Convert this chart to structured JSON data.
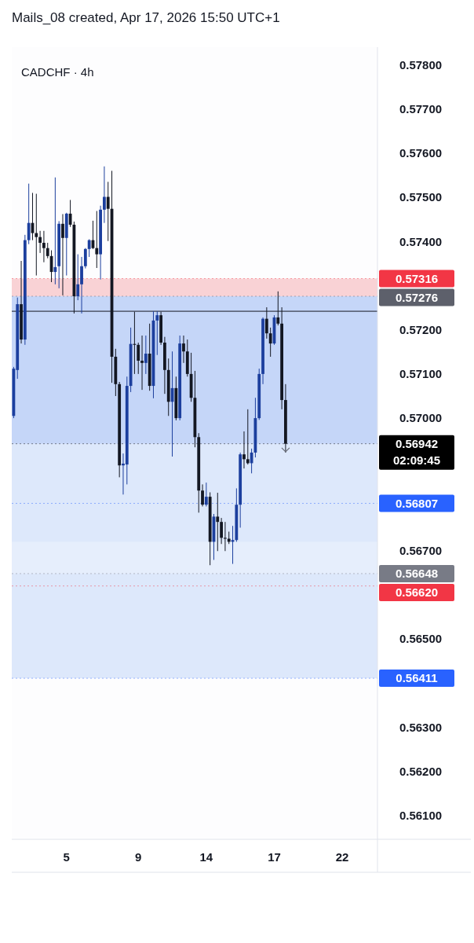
{
  "chart_data": {
    "type": "candlestick",
    "title": "CADCHF · 4h",
    "annotations": [
      "Mails_08 created, Apr 17, 2026 15:50 UTC+1"
    ],
    "categories": [
      null,
      null,
      null,
      null,
      null,
      null,
      null,
      null,
      null,
      null,
      null,
      null,
      null,
      null,
      "5",
      null,
      null,
      null,
      null,
      null,
      null,
      null,
      null,
      null,
      null,
      null,
      null,
      null,
      null,
      null,
      null,
      null,
      null,
      "9",
      null,
      null,
      null,
      null,
      null,
      null,
      null,
      null,
      null,
      null,
      null,
      null,
      null,
      null,
      null,
      null,
      null,
      "14",
      null,
      null,
      null,
      null,
      null,
      null,
      null,
      null,
      null,
      null,
      null,
      null,
      null,
      null,
      null,
      null,
      null,
      "17",
      null,
      null,
      null,
      null,
      null,
      null,
      null,
      null,
      null,
      null,
      null,
      null,
      null,
      null,
      null,
      null,
      null,
      "22",
      null,
      null,
      null,
      null,
      null,
      null,
      null,
      null
    ],
    "ohlc": [
      [
        0.57005,
        0.57116,
        0.57,
        0.57112
      ],
      [
        0.57109,
        0.57273,
        0.57089,
        0.57258
      ],
      [
        0.57258,
        0.57356,
        0.57169,
        0.57178
      ],
      [
        0.57178,
        0.57415,
        0.57166,
        0.57403
      ],
      [
        0.57403,
        0.57531,
        0.57394,
        0.57442
      ],
      [
        0.57442,
        0.5751,
        0.57403,
        0.57419
      ],
      [
        0.57419,
        0.57508,
        0.57323,
        0.5741
      ],
      [
        0.5741,
        0.57424,
        0.57374,
        0.57397
      ],
      [
        0.57397,
        0.57424,
        0.57353,
        0.57385
      ],
      [
        0.57385,
        0.57397,
        0.57362,
        0.57367
      ],
      [
        0.57367,
        0.5738,
        0.57308,
        0.57331
      ],
      [
        0.57331,
        0.57545,
        0.57303,
        0.57342
      ],
      [
        0.57344,
        0.57446,
        0.57294,
        0.5744
      ],
      [
        0.5744,
        0.57462,
        0.57278,
        0.57408
      ],
      [
        0.57408,
        0.57465,
        0.57323,
        0.57463
      ],
      [
        0.57463,
        0.57494,
        0.57433,
        0.57438
      ],
      [
        0.57438,
        0.57445,
        0.57237,
        0.57276
      ],
      [
        0.57276,
        0.57371,
        0.57267,
        0.57303
      ],
      [
        0.57303,
        0.57365,
        0.57237,
        0.57344
      ],
      [
        0.57344,
        0.57385,
        0.57339,
        0.57383
      ],
      [
        0.57383,
        0.57405,
        0.57365,
        0.57403
      ],
      [
        0.57403,
        0.57447,
        0.57383,
        0.57385
      ],
      [
        0.57385,
        0.57469,
        0.5734,
        0.57371
      ],
      [
        0.57371,
        0.57481,
        0.57314,
        0.57472
      ],
      [
        0.57472,
        0.5757,
        0.57442,
        0.57501
      ],
      [
        0.57501,
        0.57535,
        0.57401,
        0.57474
      ],
      [
        0.57474,
        0.5756,
        0.5708,
        0.57139
      ],
      [
        0.57139,
        0.57157,
        0.5705,
        0.57077
      ],
      [
        0.57077,
        0.57082,
        0.56866,
        0.56893
      ],
      [
        0.56893,
        0.5692,
        0.56827,
        0.56897
      ],
      [
        0.56895,
        0.57094,
        0.5685,
        0.57073
      ],
      [
        0.57073,
        0.57205,
        0.57059,
        0.57168
      ],
      [
        0.57168,
        0.57241,
        0.571,
        0.57166
      ],
      [
        0.57166,
        0.57171,
        0.571,
        0.5713
      ],
      [
        0.5713,
        0.57187,
        0.57064,
        0.57125
      ],
      [
        0.57125,
        0.57187,
        0.571,
        0.57146
      ],
      [
        0.57146,
        0.57214,
        0.57062,
        0.57073
      ],
      [
        0.57073,
        0.57242,
        0.57045,
        0.57221
      ],
      [
        0.57221,
        0.57242,
        0.57143,
        0.57233
      ],
      [
        0.57233,
        0.57241,
        0.57166,
        0.57171
      ],
      [
        0.57171,
        0.57184,
        0.57055,
        0.57109
      ],
      [
        0.57109,
        0.57135,
        0.57005,
        0.57037
      ],
      [
        0.57037,
        0.57151,
        0.56913,
        0.57068
      ],
      [
        0.57068,
        0.57094,
        0.56995,
        0.57
      ],
      [
        0.57,
        0.57187,
        0.56995,
        0.57169
      ],
      [
        0.57169,
        0.57187,
        0.57125,
        0.57151
      ],
      [
        0.57151,
        0.57178,
        0.57094,
        0.571
      ],
      [
        0.571,
        0.57148,
        0.57037,
        0.57046
      ],
      [
        0.57046,
        0.57107,
        0.56934,
        0.56957
      ],
      [
        0.56957,
        0.56966,
        0.56786,
        0.56836
      ],
      [
        0.56836,
        0.5685,
        0.568,
        0.56804
      ],
      [
        0.56804,
        0.56854,
        0.568,
        0.56822
      ],
      [
        0.56822,
        0.56832,
        0.56667,
        0.5672
      ],
      [
        0.5672,
        0.56783,
        0.56679,
        0.56777
      ],
      [
        0.56777,
        0.56831,
        0.56699,
        0.56765
      ],
      [
        0.56765,
        0.56774,
        0.56715,
        0.56729
      ],
      [
        0.56729,
        0.56765,
        0.56699,
        0.56727
      ],
      [
        0.56727,
        0.56743,
        0.56715,
        0.5672
      ],
      [
        0.5672,
        0.56756,
        0.5667,
        0.56724
      ],
      [
        0.56724,
        0.56841,
        0.5672,
        0.56804
      ],
      [
        0.56804,
        0.56922,
        0.56752,
        0.56918
      ],
      [
        0.56918,
        0.5697,
        0.56886,
        0.56907
      ],
      [
        0.56907,
        0.5702,
        0.56895,
        0.56898
      ],
      [
        0.56898,
        0.56931,
        0.56875,
        0.56922
      ],
      [
        0.56922,
        0.57046,
        0.56911,
        0.57
      ],
      [
        0.57,
        0.57112,
        0.56996,
        0.571
      ],
      [
        0.571,
        0.57228,
        0.57077,
        0.57225
      ],
      [
        0.57225,
        0.57251,
        0.5718,
        0.57192
      ],
      [
        0.57192,
        0.57205,
        0.57139,
        0.57169
      ],
      [
        0.57169,
        0.57233,
        0.57166,
        0.57228
      ],
      [
        0.57228,
        0.57287,
        0.5721,
        0.57214
      ],
      [
        0.57214,
        0.57251,
        0.5702,
        0.57041
      ],
      [
        0.57041,
        0.57077,
        0.56922,
        0.56942
      ],
      null,
      null,
      null,
      null,
      null,
      null,
      null,
      null,
      null,
      null,
      null,
      null,
      null,
      null,
      null,
      null,
      null,
      null,
      null,
      null,
      null,
      null,
      null
    ],
    "ylim": [
      0.5605,
      0.5784
    ],
    "yticks": [
      {
        "value": 0.561,
        "label": "0.56100"
      },
      {
        "value": 0.562,
        "label": "0.56200"
      },
      {
        "value": 0.563,
        "label": "0.56300"
      },
      {
        "value": 0.565,
        "label": "0.56500"
      },
      {
        "value": 0.567,
        "label": "0.56700"
      },
      {
        "value": 0.57,
        "label": "0.57000"
      },
      {
        "value": 0.571,
        "label": "0.57100"
      },
      {
        "value": 0.572,
        "label": "0.57200"
      },
      {
        "value": 0.574,
        "label": "0.57400"
      },
      {
        "value": 0.575,
        "label": "0.57500"
      },
      {
        "value": 0.576,
        "label": "0.57600"
      },
      {
        "value": 0.577,
        "label": "0.57700"
      },
      {
        "value": 0.578,
        "label": "0.57800"
      }
    ],
    "bands": [
      {
        "axis": "y",
        "from": 0.56411,
        "to": 0.57276,
        "color": "#dde8fb"
      },
      {
        "axis": "y",
        "from": 0.56942,
        "to": 0.57276,
        "color": "#c5d6f8"
      },
      {
        "axis": "y",
        "from": 0.57276,
        "to": 0.57316,
        "color": "#f9d2d5"
      },
      {
        "axis": "y",
        "from": 0.56648,
        "to": 0.5672,
        "color": "#e6eefc"
      }
    ],
    "ref_lines": [
      {
        "axis": "y",
        "value": 0.57316,
        "label": "0.57316",
        "color": "#f23645"
      },
      {
        "axis": "y",
        "value": 0.57276,
        "label": "0.57276",
        "color": "#5d606b"
      },
      {
        "axis": "y",
        "value": 0.57242,
        "label": null,
        "color": "#131722"
      },
      {
        "axis": "y",
        "value": 0.56942,
        "label": "0.56942\n02:09:45",
        "color": "#000000"
      },
      {
        "axis": "y",
        "value": 0.56807,
        "label": "0.56807",
        "color": "#2962ff"
      },
      {
        "axis": "y",
        "value": 0.56648,
        "label": "0.56648",
        "color": "#787b86"
      },
      {
        "axis": "y",
        "value": 0.5662,
        "label": "0.56620",
        "color": "#f23645"
      },
      {
        "axis": "y",
        "value": 0.56411,
        "label": "0.56411",
        "color": "#2962ff"
      }
    ],
    "grid": false
  }
}
